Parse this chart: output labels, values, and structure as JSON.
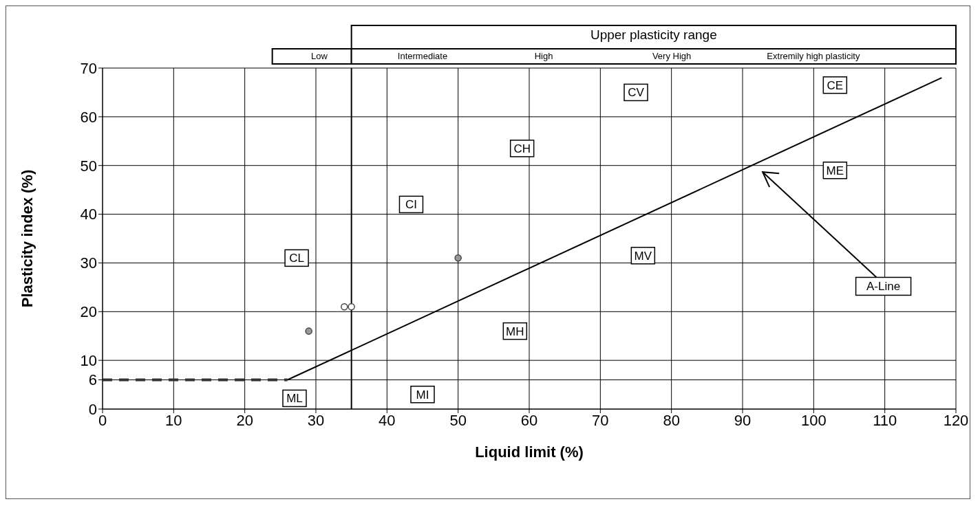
{
  "chart_data": {
    "type": "scatter",
    "xlabel": "Liquid limit (%)",
    "ylabel": "Plasticity index (%)",
    "xlim": [
      0,
      120
    ],
    "xticks": [
      0,
      10,
      20,
      30,
      40,
      50,
      60,
      70,
      80,
      90,
      100,
      110,
      120
    ],
    "ylim": [
      0,
      70
    ],
    "yticks": [
      0,
      6,
      10,
      20,
      30,
      40,
      50,
      60,
      70
    ],
    "grid": true,
    "legend": false,
    "series": [
      {
        "type": "line",
        "x": [
          26,
          118
        ],
        "values": [
          6,
          68
        ],
        "color": "#000000",
        "marker": "none",
        "line_style": "solid"
      },
      {
        "type": "line",
        "x": [
          0,
          26
        ],
        "values": [
          6,
          6
        ],
        "color": "#333333",
        "marker": "none",
        "line_style": "dashed"
      },
      {
        "x": [
          29,
          50
        ],
        "values": [
          16,
          31
        ],
        "color": "#999999",
        "marker": "circle"
      },
      {
        "x": [
          34,
          35
        ],
        "values": [
          21,
          21
        ],
        "color": "#ffffff",
        "marker": "circle"
      }
    ],
    "ref_lines": [
      {
        "axis": "x",
        "value": 35,
        "color": "#000000"
      }
    ],
    "annotations": [
      "Upper plasticity range",
      "Low",
      "Intermediate",
      "High",
      "Very High",
      "Extremily high plasticity",
      {
        "text": "CL",
        "x": 27.3,
        "y": 31
      },
      {
        "text": "CI",
        "x": 43.4,
        "y": 42
      },
      {
        "text": "CH",
        "x": 59,
        "y": 53.5
      },
      {
        "text": "CV",
        "x": 75,
        "y": 65
      },
      {
        "text": "CE",
        "x": 103,
        "y": 66.5
      },
      {
        "text": "ML",
        "x": 27,
        "y": 2.2
      },
      {
        "text": "MI",
        "x": 45,
        "y": 3
      },
      {
        "text": "MH",
        "x": 58,
        "y": 16
      },
      {
        "text": "MV",
        "x": 76,
        "y": 31.5
      },
      {
        "text": "ME",
        "x": 103,
        "y": 49
      },
      "A-Line"
    ]
  }
}
